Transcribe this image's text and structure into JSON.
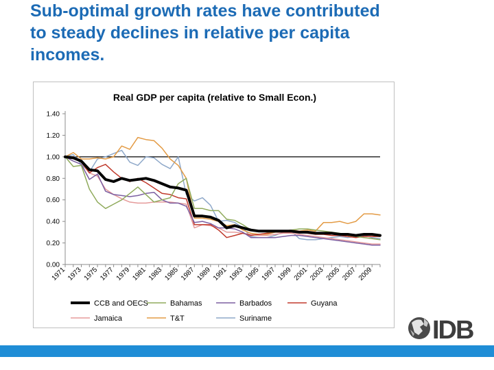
{
  "slide": {
    "title_line1": "Sub-optimal growth rates have contributed",
    "title_line2": "to steady declines in relative per capita",
    "title_line3": "incomes."
  },
  "logo": {
    "text": "IDB",
    "icon": "globe-icon"
  },
  "colors": {
    "title": "#1c6bb5",
    "bottom_bar": "#1f8dd6",
    "reference_line": "#000000"
  },
  "chart_data": {
    "type": "line",
    "title": "Real GDP per capita (relative to Small Econ.)",
    "xlabel": "",
    "ylabel": "",
    "ylim": [
      0,
      1.4
    ],
    "yticks": [
      "0.00",
      "0.20",
      "0.40",
      "0.60",
      "0.80",
      "1.00",
      "1.20",
      "1.40"
    ],
    "x": [
      1971,
      1972,
      1973,
      1974,
      1975,
      1976,
      1977,
      1978,
      1979,
      1980,
      1981,
      1982,
      1983,
      1984,
      1985,
      1986,
      1987,
      1988,
      1989,
      1990,
      1991,
      1992,
      1993,
      1994,
      1995,
      1996,
      1997,
      1998,
      1999,
      2000,
      2001,
      2002,
      2003,
      2004,
      2005,
      2006,
      2007,
      2008,
      2009,
      2010
    ],
    "xticks": [
      "1971",
      "1973",
      "1975",
      "1977",
      "1979",
      "1981",
      "1983",
      "1985",
      "1987",
      "1989",
      "1991",
      "1993",
      "1995",
      "1997",
      "1999",
      "2001",
      "2003",
      "2005",
      "2007",
      "2009"
    ],
    "reference_line": 1.0,
    "grid": false,
    "legend_position": "bottom",
    "series": [
      {
        "name": "CCB and OECS",
        "color": "#000000",
        "width": 4,
        "values": [
          1.0,
          0.99,
          0.96,
          0.88,
          0.87,
          0.79,
          0.77,
          0.8,
          0.78,
          0.79,
          0.8,
          0.78,
          0.75,
          0.72,
          0.71,
          0.69,
          0.45,
          0.45,
          0.44,
          0.41,
          0.34,
          0.36,
          0.34,
          0.32,
          0.31,
          0.31,
          0.31,
          0.31,
          0.31,
          0.3,
          0.3,
          0.29,
          0.29,
          0.29,
          0.28,
          0.28,
          0.27,
          0.28,
          0.28,
          0.27
        ]
      },
      {
        "name": "Bahamas",
        "color": "#8faa5b",
        "width": 1.5,
        "values": [
          1.0,
          0.91,
          0.92,
          0.7,
          0.58,
          0.52,
          0.56,
          0.6,
          0.66,
          0.72,
          0.65,
          0.58,
          0.6,
          0.62,
          0.75,
          0.8,
          0.52,
          0.52,
          0.5,
          0.5,
          0.42,
          0.41,
          0.37,
          0.32,
          0.31,
          0.3,
          0.3,
          0.31,
          0.32,
          0.33,
          0.33,
          0.32,
          0.31,
          0.3,
          0.29,
          0.27,
          0.26,
          0.25,
          0.24,
          0.23
        ]
      },
      {
        "name": "Barbados",
        "color": "#7b5ea1",
        "width": 1.5,
        "values": [
          1.0,
          0.96,
          0.93,
          0.79,
          0.84,
          0.68,
          0.65,
          0.64,
          0.63,
          0.64,
          0.66,
          0.67,
          0.6,
          0.57,
          0.57,
          0.54,
          0.39,
          0.4,
          0.38,
          0.34,
          0.34,
          0.33,
          0.3,
          0.25,
          0.25,
          0.25,
          0.25,
          0.26,
          0.27,
          0.27,
          0.26,
          0.25,
          0.24,
          0.23,
          0.22,
          0.21,
          0.2,
          0.19,
          0.18,
          0.18
        ]
      },
      {
        "name": "Guyana",
        "color": "#c0392b",
        "width": 1.5,
        "values": [
          1.0,
          1.0,
          0.95,
          0.85,
          0.9,
          0.93,
          0.86,
          0.8,
          0.77,
          0.8,
          0.76,
          0.71,
          0.66,
          0.65,
          0.62,
          0.61,
          0.37,
          0.37,
          0.37,
          0.32,
          0.25,
          0.27,
          0.29,
          0.27,
          0.28,
          0.29,
          0.3,
          0.3,
          0.3,
          0.3,
          0.29,
          0.28,
          0.28,
          0.27,
          0.27,
          0.26,
          0.25,
          0.26,
          0.26,
          0.26
        ]
      },
      {
        "name": "Jamaica",
        "color": "#e59a9a",
        "width": 1.5,
        "values": [
          1.0,
          0.99,
          0.95,
          0.85,
          0.82,
          0.7,
          0.65,
          0.61,
          0.58,
          0.57,
          0.57,
          0.58,
          0.58,
          0.58,
          0.57,
          0.56,
          0.34,
          0.37,
          0.36,
          0.34,
          0.3,
          0.3,
          0.29,
          0.28,
          0.27,
          0.27,
          0.28,
          0.29,
          0.29,
          0.28,
          0.27,
          0.26,
          0.25,
          0.24,
          0.23,
          0.22,
          0.21,
          0.2,
          0.19,
          0.19
        ]
      },
      {
        "name": "T&T",
        "color": "#e39b45",
        "width": 1.5,
        "values": [
          1.0,
          1.04,
          0.98,
          0.98,
          0.99,
          0.98,
          1.0,
          1.1,
          1.07,
          1.18,
          1.16,
          1.15,
          1.08,
          0.98,
          0.92,
          0.8,
          0.43,
          0.43,
          0.42,
          0.4,
          0.36,
          0.37,
          0.32,
          0.29,
          0.28,
          0.28,
          0.3,
          0.31,
          0.32,
          0.31,
          0.32,
          0.31,
          0.39,
          0.39,
          0.4,
          0.38,
          0.4,
          0.47,
          0.47,
          0.46
        ]
      },
      {
        "name": "Suriname",
        "color": "#8ea8c9",
        "width": 1.5,
        "values": [
          1.0,
          1.02,
          0.93,
          0.86,
          0.98,
          1.0,
          1.03,
          1.06,
          0.95,
          0.92,
          1.0,
          0.99,
          0.93,
          0.89,
          1.0,
          0.65,
          0.59,
          0.62,
          0.55,
          0.4,
          0.41,
          0.39,
          0.34,
          0.26,
          0.25,
          0.25,
          0.27,
          0.3,
          0.31,
          0.24,
          0.23,
          0.23,
          0.24,
          0.25,
          0.26,
          0.25,
          0.26,
          0.27,
          0.25,
          0.24
        ]
      }
    ]
  }
}
